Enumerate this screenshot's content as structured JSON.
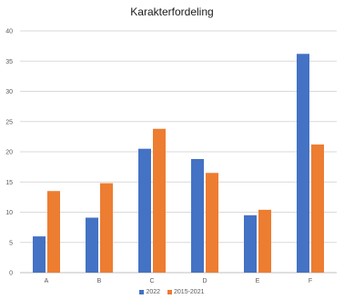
{
  "chart_data": {
    "type": "bar",
    "title": "Karakterfordeling",
    "categories": [
      "A",
      "B",
      "C",
      "D",
      "E",
      "F"
    ],
    "series": [
      {
        "name": "2022",
        "color": "#4472C4",
        "values": [
          6.0,
          9.1,
          20.5,
          18.8,
          9.5,
          36.2
        ]
      },
      {
        "name": "2015-2021",
        "color": "#ED7D31",
        "values": [
          13.5,
          14.8,
          23.8,
          16.5,
          10.4,
          21.2
        ]
      }
    ],
    "ylim": [
      0,
      40
    ],
    "yticks": [
      0,
      5,
      10,
      15,
      20,
      25,
      30,
      35,
      40
    ],
    "xlabel": "",
    "ylabel": "",
    "grid": true,
    "legend_position": "bottom"
  }
}
